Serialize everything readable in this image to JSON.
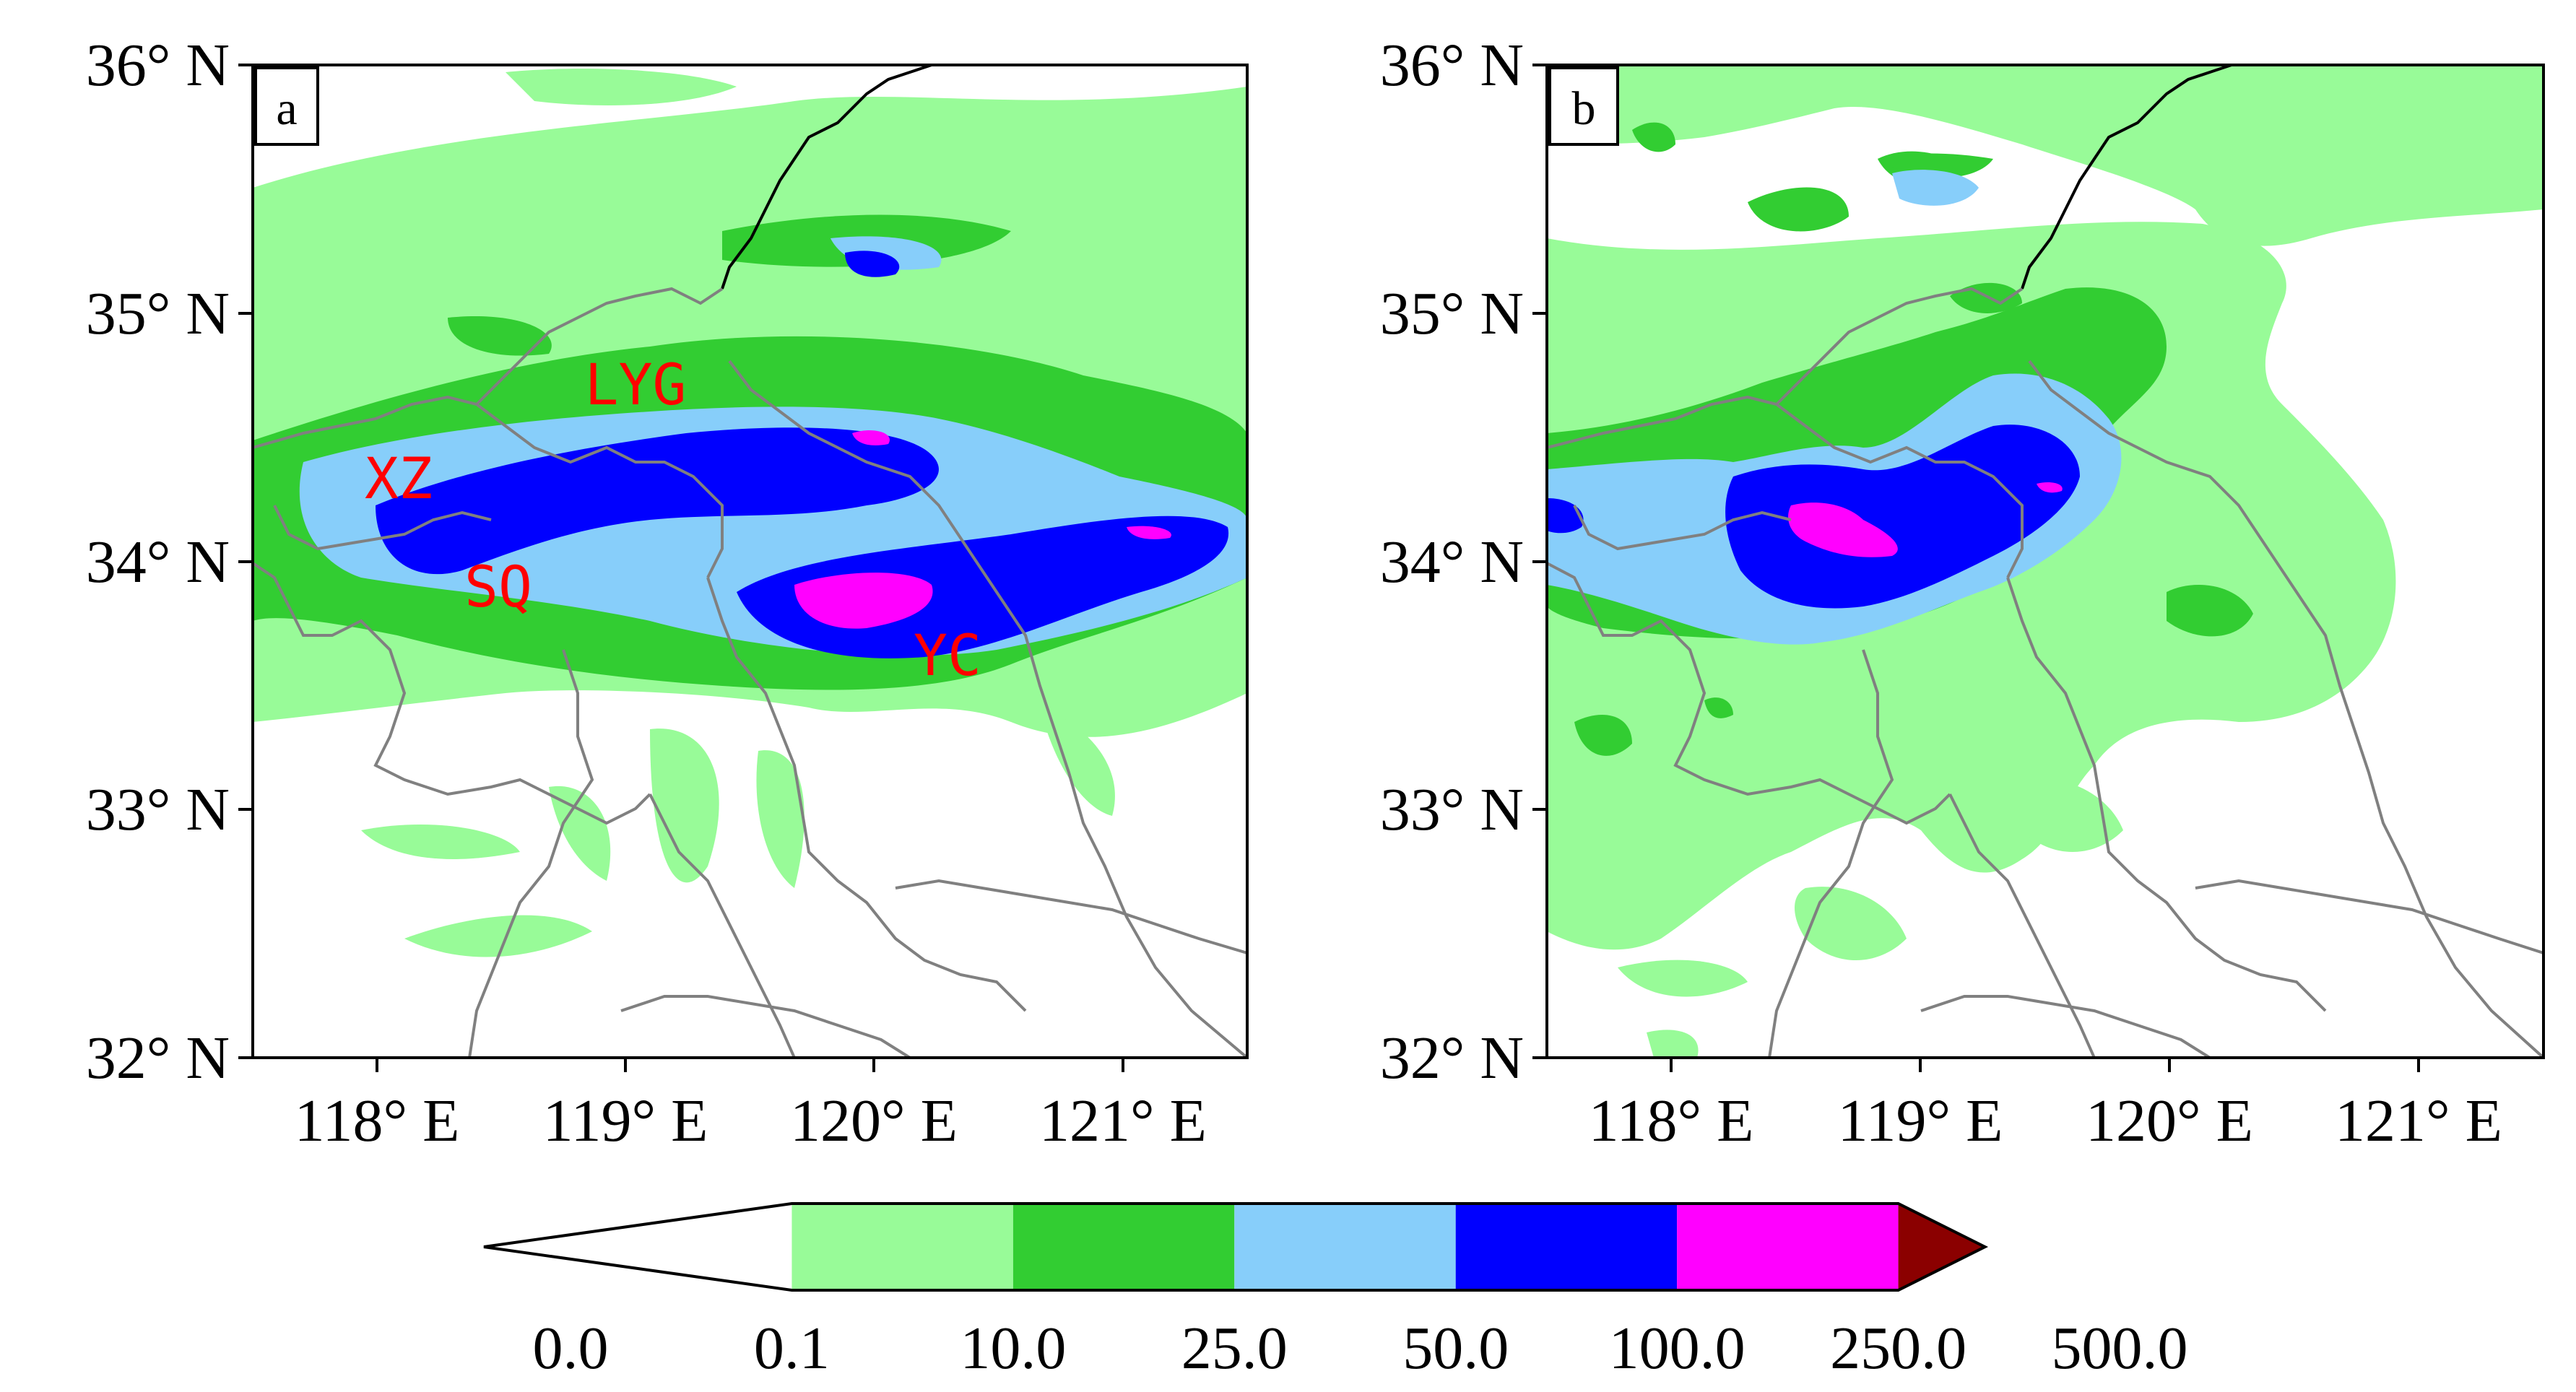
{
  "panels": [
    {
      "label": "a",
      "lat_ticks": [
        "36° N",
        "35° N",
        "34° N",
        "33° N",
        "32° N"
      ],
      "lon_ticks": [
        "118° E",
        "119° E",
        "120° E",
        "121° E"
      ],
      "cities": [
        {
          "name": "LYG"
        },
        {
          "name": "XZ"
        },
        {
          "name": "SQ"
        },
        {
          "name": "YC"
        }
      ]
    },
    {
      "label": "b",
      "lat_ticks": [
        "36° N",
        "35° N",
        "34° N",
        "33° N",
        "32° N"
      ],
      "lon_ticks": [
        "118° E",
        "119° E",
        "120° E",
        "121° E"
      ]
    }
  ],
  "colorbar": {
    "ticks": [
      "0.0",
      "0.1",
      "10.0",
      "25.0",
      "50.0",
      "100.0",
      "250.0",
      "500.0"
    ],
    "colors": [
      "#ffffff",
      "#98fb98",
      "#32cd32",
      "#87cefa",
      "#0000ff",
      "#ff00ff",
      "#8b0000"
    ]
  }
}
